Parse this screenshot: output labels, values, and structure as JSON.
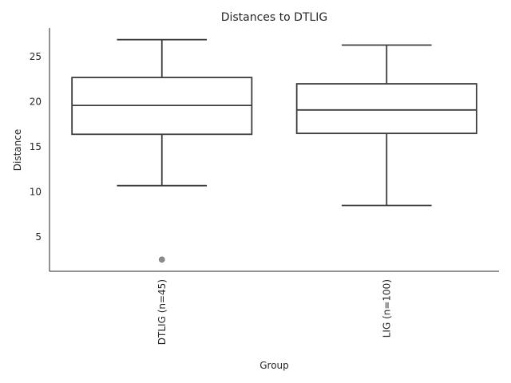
{
  "chart_data": {
    "type": "box",
    "title": "Distances to DTLIG",
    "xlabel": "Group",
    "ylabel": "Distance",
    "ylim": [
      1.2,
      28.2
    ],
    "yticks": [
      5,
      10,
      15,
      20,
      25
    ],
    "grid": false,
    "categories": [
      "DTLIG (n=45)",
      "LIG (n=100)"
    ],
    "boxes": [
      {
        "whislo": 10.7,
        "q1": 16.4,
        "med": 19.6,
        "q3": 22.7,
        "whishi": 26.9,
        "fliers": [
          2.5
        ]
      },
      {
        "whislo": 8.5,
        "q1": 16.5,
        "med": 19.1,
        "q3": 22.0,
        "whishi": 26.3,
        "fliers": []
      }
    ]
  }
}
